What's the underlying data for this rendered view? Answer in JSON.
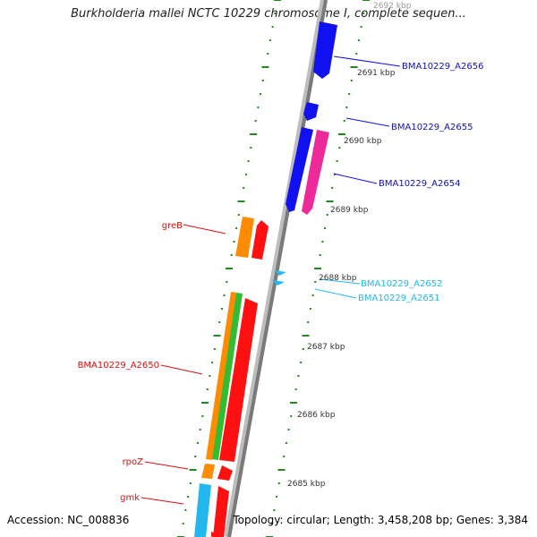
{
  "title": "Burkholderia mallei NCTC 10229 chromosome I, complete sequen...",
  "footer": {
    "accession": "Accession: NC_008836",
    "summary": "Topology: circular; Length: 3,458,208 bp; Genes: 3,384"
  },
  "colors": {
    "backbone": "#8c8c8c",
    "tick": "#1f8a1f",
    "blue": "#1010f0",
    "magenta": "#ee2a9a",
    "orange": "#ff8c00",
    "red": "#ff1010",
    "green": "#33bb33",
    "cyan": "#22b8ee"
  },
  "kbp_labels": [
    "2692 kbp",
    "2691 kbp",
    "2690 kbp",
    "2689 kbp",
    "2688 kbp",
    "2687 kbp",
    "2686 kbp",
    "2685 kbp"
  ],
  "gene_labels": {
    "a2656": "BMA10229_A2656",
    "a2655": "BMA10229_A2655",
    "a2654": "BMA10229_A2654",
    "a2652": "BMA10229_A2652",
    "a2651": "BMA10229_A2651",
    "greB": "greB",
    "a2650": "BMA10229_A2650",
    "rpoZ": "rpoZ",
    "gmk": "gmk"
  }
}
